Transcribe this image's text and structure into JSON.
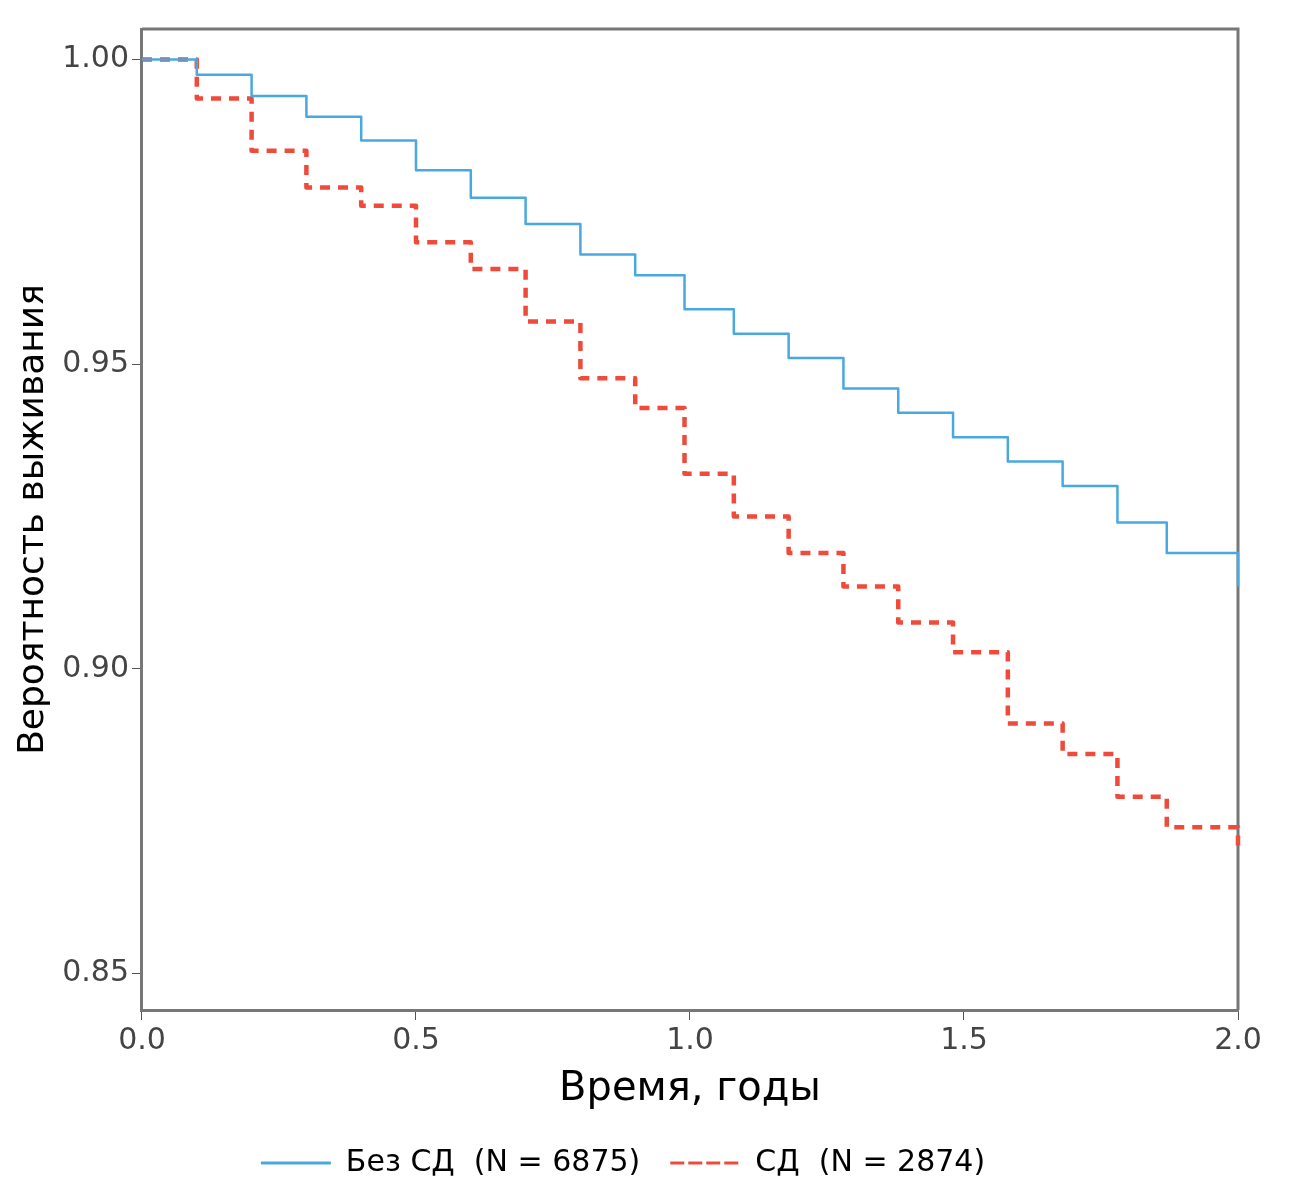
{
  "chart_data": {
    "type": "step",
    "xlabel": "Время, годы",
    "ylabel": "Вероятность выживания",
    "xlim": [
      0,
      2
    ],
    "xticks": [
      {
        "value": 0,
        "label": "0.0"
      },
      {
        "value": 0.5,
        "label": "0.5"
      },
      {
        "value": 1,
        "label": "1.0"
      },
      {
        "value": 1.5,
        "label": "1.5"
      },
      {
        "value": 2,
        "label": "2.0"
      }
    ],
    "ylim": [
      0.844,
      1.005
    ],
    "yticks": [
      {
        "value": 0.85,
        "label": "0.85"
      },
      {
        "value": 0.9,
        "label": "0.90"
      },
      {
        "value": 0.95,
        "label": "0.95"
      },
      {
        "value": 1,
        "label": "1.00"
      }
    ],
    "grid": false,
    "legend": "bottom",
    "x": [
      0,
      0.1,
      0.2,
      0.3,
      0.4,
      0.5,
      0.6,
      0.7,
      0.8,
      0.9,
      0.99,
      1.08,
      1.18,
      1.28,
      1.38,
      1.48,
      1.58,
      1.68,
      1.78,
      1.87,
      2
    ],
    "series": [
      {
        "name": "Без СД  (N = 6875)",
        "color": "#4aa8e0",
        "line_style": "solid",
        "values": [
          1,
          0.9975,
          0.994,
          0.9906,
          0.9867,
          0.9818,
          0.9773,
          0.973,
          0.968,
          0.9646,
          0.959,
          0.955,
          0.951,
          0.946,
          0.942,
          0.938,
          0.934,
          0.93,
          0.924,
          0.919,
          0.9135
        ]
      },
      {
        "name": "СД  (N = 2874)",
        "color": "#f04a3a",
        "line_style": "dashed",
        "values": [
          1,
          0.9936,
          0.985,
          0.979,
          0.976,
          0.97,
          0.9656,
          0.957,
          0.9477,
          0.9428,
          0.932,
          0.925,
          0.919,
          0.9135,
          0.9076,
          0.9027,
          0.891,
          0.886,
          0.879,
          0.874,
          0.87
        ]
      }
    ]
  }
}
